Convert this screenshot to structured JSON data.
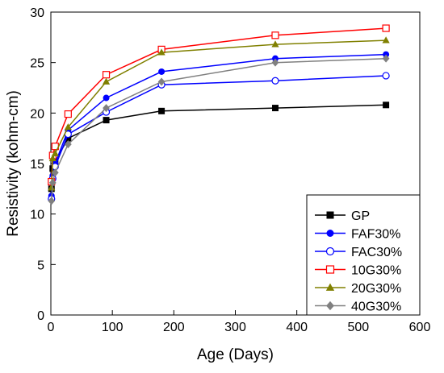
{
  "chart_data": {
    "type": "line",
    "xlabel": "Age (Days)",
    "ylabel": "Resistivity (kohm-cm)",
    "xlim": [
      0,
      600
    ],
    "ylim": [
      0,
      30
    ],
    "xticks": [
      0,
      100,
      200,
      300,
      400,
      500,
      600
    ],
    "yticks": [
      0,
      5,
      10,
      15,
      20,
      25,
      30
    ],
    "grid": false,
    "legend_position": "bottom-right",
    "x": [
      1,
      3,
      7,
      28,
      90,
      180,
      365,
      545
    ],
    "series": [
      {
        "name": "GP",
        "color": "#000000",
        "marker": "square-filled",
        "values": [
          12.5,
          14.5,
          15.2,
          17.5,
          19.3,
          20.2,
          20.5,
          20.8
        ]
      },
      {
        "name": "FAF30%",
        "color": "#0000ff",
        "marker": "circle-filled",
        "values": [
          11.8,
          13.8,
          15.0,
          18.3,
          21.5,
          24.1,
          25.4,
          25.8
        ]
      },
      {
        "name": "FAC30%",
        "color": "#0000ff",
        "marker": "circle-open",
        "values": [
          11.5,
          13.5,
          14.7,
          17.9,
          20.1,
          22.8,
          23.2,
          23.7
        ]
      },
      {
        "name": "10G30%",
        "color": "#ff0000",
        "marker": "square-open",
        "values": [
          13.2,
          15.8,
          16.7,
          19.9,
          23.8,
          26.3,
          27.7,
          28.4
        ]
      },
      {
        "name": "20G30%",
        "color": "#808000",
        "marker": "triangle-filled",
        "values": [
          12.6,
          15.5,
          16.0,
          18.6,
          23.1,
          26.0,
          26.8,
          27.2
        ]
      },
      {
        "name": "40G30%",
        "color": "#808080",
        "marker": "diamond-filled",
        "values": [
          11.3,
          13.1,
          14.1,
          16.9,
          20.5,
          23.1,
          25.0,
          25.4
        ]
      }
    ]
  }
}
